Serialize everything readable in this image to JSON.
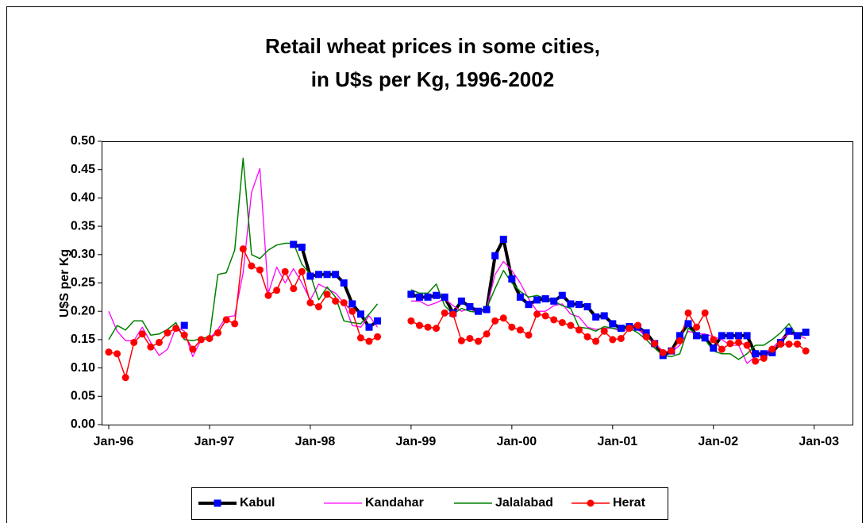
{
  "chart_data": {
    "type": "line",
    "title": [
      "Retail wheat prices in some cities,",
      "in U$s per Kg, 1996-2002"
    ],
    "y_label": "U$S per Kg",
    "categories": [
      "Jan-96",
      null,
      null,
      null,
      null,
      null,
      null,
      null,
      null,
      null,
      null,
      null,
      "Jan-97",
      null,
      null,
      null,
      null,
      null,
      null,
      null,
      null,
      null,
      null,
      null,
      "Jan-98",
      null,
      null,
      null,
      null,
      null,
      null,
      null,
      null,
      null,
      null,
      null,
      "Jan-99",
      null,
      null,
      null,
      null,
      null,
      null,
      null,
      null,
      null,
      null,
      null,
      "Jan-00",
      null,
      null,
      null,
      null,
      null,
      null,
      null,
      null,
      null,
      null,
      null,
      "Jan-01",
      null,
      null,
      null,
      null,
      null,
      null,
      null,
      null,
      null,
      null,
      null,
      "Jan-02",
      null,
      null,
      null,
      null,
      null,
      null,
      null,
      null,
      null,
      null,
      null,
      "Jan-03"
    ],
    "ylim": [
      0,
      0.5
    ],
    "yticks": [
      {
        "value": 0,
        "label": "0.00"
      },
      {
        "value": 0.05,
        "label": "0.05"
      },
      {
        "value": 0.1,
        "label": "0.10"
      },
      {
        "value": 0.15,
        "label": "0.15"
      },
      {
        "value": 0.2,
        "label": "0.20"
      },
      {
        "value": 0.25,
        "label": "0.25"
      },
      {
        "value": 0.3,
        "label": "0.30"
      },
      {
        "value": 0.35,
        "label": "0.35"
      },
      {
        "value": 0.4,
        "label": "0.40"
      },
      {
        "value": 0.45,
        "label": "0.45"
      },
      {
        "value": 0.5,
        "label": "0.50"
      }
    ],
    "grid": false,
    "legend": "bottom",
    "series": [
      {
        "name": "Kabul",
        "color": "#000000",
        "marker_color": "#0000ff",
        "marker": "square",
        "line_width": 4,
        "values": [
          null,
          null,
          null,
          null,
          null,
          null,
          null,
          null,
          null,
          0.175,
          null,
          null,
          null,
          null,
          null,
          null,
          null,
          null,
          null,
          null,
          null,
          null,
          0.318,
          0.313,
          0.262,
          0.265,
          0.265,
          0.265,
          0.25,
          0.213,
          0.195,
          0.172,
          0.183,
          null,
          null,
          null,
          0.23,
          0.225,
          0.225,
          0.228,
          0.225,
          0.197,
          0.218,
          0.208,
          0.2,
          0.203,
          0.298,
          0.327,
          0.257,
          0.225,
          0.212,
          0.22,
          0.222,
          0.218,
          0.228,
          0.213,
          0.212,
          0.208,
          0.19,
          0.192,
          0.178,
          0.17,
          0.173,
          0.172,
          0.162,
          0.143,
          0.122,
          0.13,
          0.157,
          0.178,
          0.157,
          0.153,
          0.135,
          0.157,
          0.157,
          0.157,
          0.157,
          0.125,
          0.125,
          0.127,
          0.145,
          0.165,
          0.157,
          0.163,
          null
        ]
      },
      {
        "name": "Kandahar",
        "color": "#ff00ff",
        "marker": null,
        "line_width": 1.3,
        "values": [
          0.2,
          0.165,
          0.148,
          0.148,
          0.172,
          0.145,
          0.122,
          0.133,
          0.172,
          0.165,
          0.12,
          0.15,
          0.152,
          0.168,
          0.19,
          0.192,
          0.268,
          0.41,
          0.452,
          0.232,
          0.278,
          0.25,
          0.275,
          0.25,
          0.22,
          0.248,
          0.24,
          0.232,
          0.215,
          0.175,
          0.172,
          0.192,
          0.172,
          null,
          null,
          null,
          0.218,
          0.218,
          0.21,
          0.215,
          0.222,
          0.21,
          0.2,
          0.205,
          0.195,
          0.205,
          0.265,
          0.288,
          0.272,
          0.25,
          0.222,
          0.2,
          0.2,
          0.21,
          0.213,
          0.195,
          0.19,
          0.172,
          0.168,
          0.17,
          0.17,
          0.165,
          0.168,
          0.168,
          0.155,
          0.143,
          0.13,
          0.128,
          0.14,
          0.165,
          0.16,
          0.16,
          0.155,
          0.15,
          0.14,
          0.14,
          0.108,
          0.12,
          0.125,
          0.135,
          0.15,
          0.16,
          0.158,
          0.152,
          null
        ]
      },
      {
        "name": "Jalalabad",
        "color": "#008000",
        "marker": null,
        "line_width": 1.5,
        "values": [
          0.15,
          0.175,
          0.167,
          0.183,
          0.183,
          0.158,
          0.16,
          0.168,
          0.18,
          0.15,
          0.148,
          0.152,
          0.155,
          0.265,
          0.268,
          0.308,
          0.47,
          0.3,
          0.293,
          0.308,
          0.317,
          0.32,
          0.32,
          0.283,
          0.265,
          0.22,
          0.243,
          0.225,
          0.183,
          0.18,
          0.178,
          0.195,
          0.213,
          null,
          null,
          null,
          0.238,
          0.232,
          0.232,
          0.248,
          0.21,
          0.195,
          0.205,
          0.2,
          0.198,
          0.205,
          0.24,
          0.272,
          0.25,
          0.235,
          0.225,
          0.228,
          0.222,
          0.218,
          0.21,
          0.205,
          0.172,
          0.17,
          0.165,
          0.173,
          0.17,
          0.168,
          0.17,
          0.162,
          0.15,
          0.135,
          0.122,
          0.12,
          0.125,
          0.17,
          0.16,
          0.15,
          0.13,
          0.125,
          0.125,
          0.115,
          0.125,
          0.14,
          0.14,
          0.15,
          0.162,
          0.178,
          0.155,
          0.16,
          null
        ]
      },
      {
        "name": "Herat",
        "color": "#ff0000",
        "marker_color": "#ff0000",
        "marker": "circle",
        "line_width": 1.5,
        "values": [
          0.128,
          0.125,
          0.083,
          0.145,
          0.16,
          0.137,
          0.145,
          0.162,
          0.17,
          0.158,
          0.133,
          0.15,
          0.152,
          0.162,
          0.185,
          0.178,
          0.31,
          0.28,
          0.273,
          0.228,
          0.237,
          0.27,
          0.24,
          0.27,
          0.215,
          0.208,
          0.23,
          0.218,
          0.215,
          0.2,
          0.153,
          0.147,
          0.155,
          null,
          null,
          null,
          0.183,
          0.175,
          0.172,
          0.17,
          0.197,
          0.195,
          0.148,
          0.152,
          0.147,
          0.16,
          0.183,
          0.188,
          0.172,
          0.167,
          0.158,
          0.195,
          0.192,
          0.185,
          0.18,
          0.175,
          0.167,
          0.155,
          0.147,
          0.165,
          0.15,
          0.152,
          0.17,
          0.175,
          0.155,
          0.143,
          0.127,
          0.13,
          0.148,
          0.197,
          0.172,
          0.197,
          0.15,
          0.133,
          0.143,
          0.145,
          0.14,
          0.112,
          0.117,
          0.133,
          0.142,
          0.142,
          0.142,
          0.13,
          null
        ]
      }
    ]
  }
}
